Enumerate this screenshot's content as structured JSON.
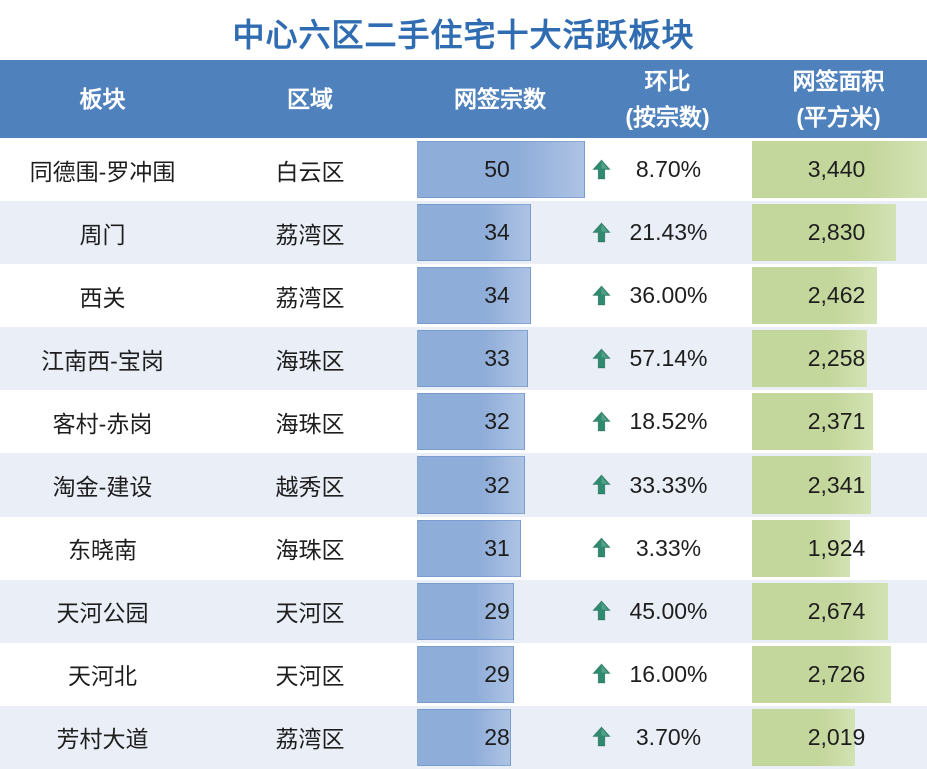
{
  "colors": {
    "title": "#2f6cb2",
    "header_background": "#4f81bd",
    "header_text": "#ffffff",
    "row_text": "#1e1e1e",
    "row_alternate_background": "#e9eef7",
    "count_bar": "#8fadd9",
    "area_bar": "#c3d69b",
    "up_arrow": "#2f8b70"
  },
  "chart_data": {
    "type": "table",
    "title": "中心六区二手住宅十大活跃板块",
    "header": {
      "block": "板块",
      "district": "区域",
      "count": "网签宗数",
      "mom": [
        "环比",
        "(按宗数)"
      ],
      "area": [
        "网签面积",
        "(平方米)"
      ]
    },
    "rows": [
      {
        "block": "同德围-罗冲围",
        "district": "白云区",
        "count": 50,
        "mom": "8.70%",
        "mom_icon": "up-arrow",
        "area": 3440,
        "area_text": "3,440"
      },
      {
        "block": "周门",
        "district": "荔湾区",
        "count": 34,
        "mom": "21.43%",
        "mom_icon": "up-arrow",
        "area": 2830,
        "area_text": "2,830"
      },
      {
        "block": "西关",
        "district": "荔湾区",
        "count": 34,
        "mom": "36.00%",
        "mom_icon": "up-arrow",
        "area": 2462,
        "area_text": "2,462"
      },
      {
        "block": "江南西-宝岗",
        "district": "海珠区",
        "count": 33,
        "mom": "57.14%",
        "mom_icon": "up-arrow",
        "area": 2258,
        "area_text": "2,258"
      },
      {
        "block": "客村-赤岗",
        "district": "海珠区",
        "count": 32,
        "mom": "18.52%",
        "mom_icon": "up-arrow",
        "area": 2371,
        "area_text": "2,371"
      },
      {
        "block": "淘金-建设",
        "district": "越秀区",
        "count": 32,
        "mom": "33.33%",
        "mom_icon": "up-arrow",
        "area": 2341,
        "area_text": "2,341"
      },
      {
        "block": "东晓南",
        "district": "海珠区",
        "count": 31,
        "mom": "3.33%",
        "mom_icon": "up-arrow",
        "area": 1924,
        "area_text": "1,924"
      },
      {
        "block": "天河公园",
        "district": "天河区",
        "count": 29,
        "mom": "45.00%",
        "mom_icon": "up-arrow",
        "area": 2674,
        "area_text": "2,674"
      },
      {
        "block": "天河北",
        "district": "天河区",
        "count": 29,
        "mom": "16.00%",
        "mom_icon": "up-arrow",
        "area": 2726,
        "area_text": "2,726"
      },
      {
        "block": "芳村大道",
        "district": "荔湾区",
        "count": 28,
        "mom": "3.70%",
        "mom_icon": "up-arrow",
        "area": 2019,
        "area_text": "2,019"
      }
    ]
  }
}
